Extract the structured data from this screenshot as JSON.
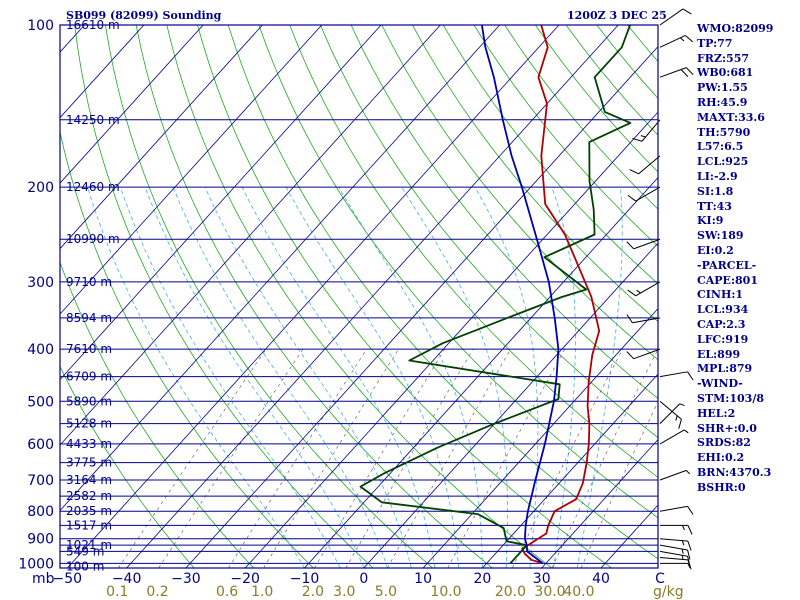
{
  "header": {
    "station": "SB099 (82099) Sounding",
    "time": "1200Z  3 DEC 25"
  },
  "indices": [
    "WMO:82099",
    "TP:77",
    "FRZ:557",
    "WB0:681",
    "PW:1.55",
    "RH:45.9",
    "MAXT:33.6",
    "TH:5790",
    "L57:6.5",
    "LCL:925",
    "LI:-2.9",
    "SI:1.8",
    "TT:43",
    "KI:9",
    "SW:189",
    "EI:0.2",
    "-PARCEL-",
    "CAPE:801",
    "CINH:1",
    "LCL:934",
    "CAP:2.3",
    "LFC:919",
    "EL:899",
    "MPL:879",
    "-WIND-",
    "STM:103/8",
    "HEL:2",
    "SHR+:0.0",
    "SRDS:82",
    "EHI:0.2",
    "BRN:4370.3",
    "BSHR:0"
  ],
  "chart_data": {
    "type": "skew-t log-p sounding",
    "title": "SB099 (82099) Sounding",
    "valid_time": "1200Z  3 DEC 25",
    "y_axis_unit": "mb",
    "x_axis_unit": "C",
    "mixing_ratio_unit": "g/kg",
    "pressure_ticks": [
      100,
      200,
      300,
      400,
      500,
      600,
      700,
      800,
      900,
      1000
    ],
    "temperature_ticks": [
      -50,
      -40,
      -30,
      -20,
      -10,
      0,
      10,
      20,
      30,
      40
    ],
    "mixing_ratio_ticks": [
      "0.1",
      "0.2",
      "0.6",
      "1.0",
      "2.0",
      "3.0",
      "5.0",
      "10.0",
      "20.0",
      "30.0",
      "40.0"
    ],
    "height_labels": [
      {
        "p": 1013,
        "label": "100 m"
      },
      {
        "p": 950,
        "label": "549 m"
      },
      {
        "p": 925,
        "label": "1021 m"
      },
      {
        "p": 850,
        "label": "1517 m"
      },
      {
        "p": 800,
        "label": "2035 m"
      },
      {
        "p": 750,
        "label": "2582 m"
      },
      {
        "p": 700,
        "label": "3164 m"
      },
      {
        "p": 650,
        "label": "3775 m"
      },
      {
        "p": 600,
        "label": "4433 m"
      },
      {
        "p": 550,
        "label": "5128 m"
      },
      {
        "p": 500,
        "label": "5890 m"
      },
      {
        "p": 450,
        "label": "6709 m"
      },
      {
        "p": 400,
        "label": "7610 m"
      },
      {
        "p": 350,
        "label": "8594 m"
      },
      {
        "p": 300,
        "label": "9710 m"
      },
      {
        "p": 250,
        "label": "10990 m"
      },
      {
        "p": 200,
        "label": "12460 m"
      },
      {
        "p": 150,
        "label": "14250 m"
      },
      {
        "p": 100,
        "label": "16610 m"
      }
    ],
    "series": [
      {
        "key": "temperature",
        "color": "#b00000",
        "points": [
          [
            1000,
            29.5
          ],
          [
            985,
            27.0
          ],
          [
            960,
            25.0
          ],
          [
            940,
            23.8
          ],
          [
            880,
            25.5
          ],
          [
            850,
            24.6
          ],
          [
            800,
            23.5
          ],
          [
            760,
            25.3
          ],
          [
            710,
            24.0
          ],
          [
            650,
            21.5
          ],
          [
            600,
            19.0
          ],
          [
            550,
            16.0
          ],
          [
            510,
            13.0
          ],
          [
            460,
            9.5
          ],
          [
            410,
            6.0
          ],
          [
            370,
            3.5
          ],
          [
            320,
            -3.0
          ],
          [
            280,
            -10.0
          ],
          [
            245,
            -17.0
          ],
          [
            215,
            -25.0
          ],
          [
            175,
            -33.0
          ],
          [
            140,
            -40.0
          ],
          [
            125,
            -45.5
          ],
          [
            110,
            -48.5
          ],
          [
            100,
            -53.0
          ]
        ]
      },
      {
        "key": "dewpoint",
        "color": "#004000",
        "points": [
          [
            1000,
            24.0
          ],
          [
            950,
            24.0
          ],
          [
            925,
            24.0
          ],
          [
            910,
            20.0
          ],
          [
            880,
            18.5
          ],
          [
            860,
            17.5
          ],
          [
            810,
            11.0
          ],
          [
            770,
            -7.0
          ],
          [
            720,
            -13.0
          ],
          [
            680,
            -11.0
          ],
          [
            610,
            -6.0
          ],
          [
            550,
            0.0
          ],
          [
            495,
            7.0
          ],
          [
            465,
            5.0
          ],
          [
            420,
            -24.0
          ],
          [
            390,
            -21.0
          ],
          [
            345,
            -13.0
          ],
          [
            320,
            -8.0
          ],
          [
            310,
            -5.0
          ],
          [
            270,
            -17.0
          ],
          [
            245,
            -12.0
          ],
          [
            220,
            -16.0
          ],
          [
            195,
            -21.0
          ],
          [
            165,
            -27.0
          ],
          [
            152,
            -23.0
          ],
          [
            145,
            -29.0
          ],
          [
            125,
            -36.0
          ],
          [
            110,
            -36.0
          ],
          [
            100,
            -38.0
          ]
        ]
      },
      {
        "key": "parcel",
        "color": "#0000b0",
        "points": [
          [
            1000,
            29.5
          ],
          [
            950,
            25.0
          ],
          [
            925,
            24.0
          ],
          [
            900,
            22.7
          ],
          [
            850,
            20.8
          ],
          [
            800,
            19.0
          ],
          [
            700,
            15.5
          ],
          [
            600,
            11.6
          ],
          [
            500,
            6.6
          ],
          [
            450,
            3.3
          ],
          [
            400,
            -0.6
          ],
          [
            350,
            -6.0
          ],
          [
            300,
            -12.5
          ],
          [
            250,
            -21.0
          ],
          [
            200,
            -31.5
          ],
          [
            175,
            -38.0
          ],
          [
            150,
            -45.0
          ],
          [
            125,
            -53.0
          ],
          [
            110,
            -59.0
          ],
          [
            100,
            -63.0
          ]
        ]
      }
    ],
    "wind_barbs": [
      {
        "p": 1000,
        "dir": 90,
        "spd": 5
      },
      {
        "p": 975,
        "dir": 95,
        "spd": 10
      },
      {
        "p": 950,
        "dir": 100,
        "spd": 15
      },
      {
        "p": 925,
        "dir": 100,
        "spd": 15
      },
      {
        "p": 900,
        "dir": 95,
        "spd": 15
      },
      {
        "p": 850,
        "dir": 90,
        "spd": 15
      },
      {
        "p": 800,
        "dir": 80,
        "spd": 10
      },
      {
        "p": 700,
        "dir": 70,
        "spd": 5
      },
      {
        "p": 600,
        "dir": 60,
        "spd": 5
      },
      {
        "p": 550,
        "dir": 45,
        "spd": 5
      },
      {
        "p": 500,
        "dir": 130,
        "spd": 15
      },
      {
        "p": 450,
        "dir": 80,
        "spd": 10
      },
      {
        "p": 400,
        "dir": 250,
        "spd": 10
      },
      {
        "p": 350,
        "dir": 260,
        "spd": 10
      },
      {
        "p": 300,
        "dir": 240,
        "spd": 15
      },
      {
        "p": 250,
        "dir": 250,
        "spd": 10
      },
      {
        "p": 200,
        "dir": 240,
        "spd": 10
      },
      {
        "p": 175,
        "dir": 230,
        "spd": 10
      },
      {
        "p": 150,
        "dir": 220,
        "spd": 15
      },
      {
        "p": 125,
        "dir": 70,
        "spd": 20
      },
      {
        "p": 110,
        "dir": 65,
        "spd": 15
      },
      {
        "p": 100,
        "dir": 55,
        "spd": 10
      }
    ]
  },
  "colors": {
    "isobar": "#00008b",
    "isotherm": "#00008b",
    "dry_adiabat": "#22aa22",
    "moist_adiabat": "#45b0e0",
    "mixing_ratio": "#666666",
    "label_gold": "#8a7a2a",
    "frame": "#00008b",
    "barb": "#000000"
  }
}
